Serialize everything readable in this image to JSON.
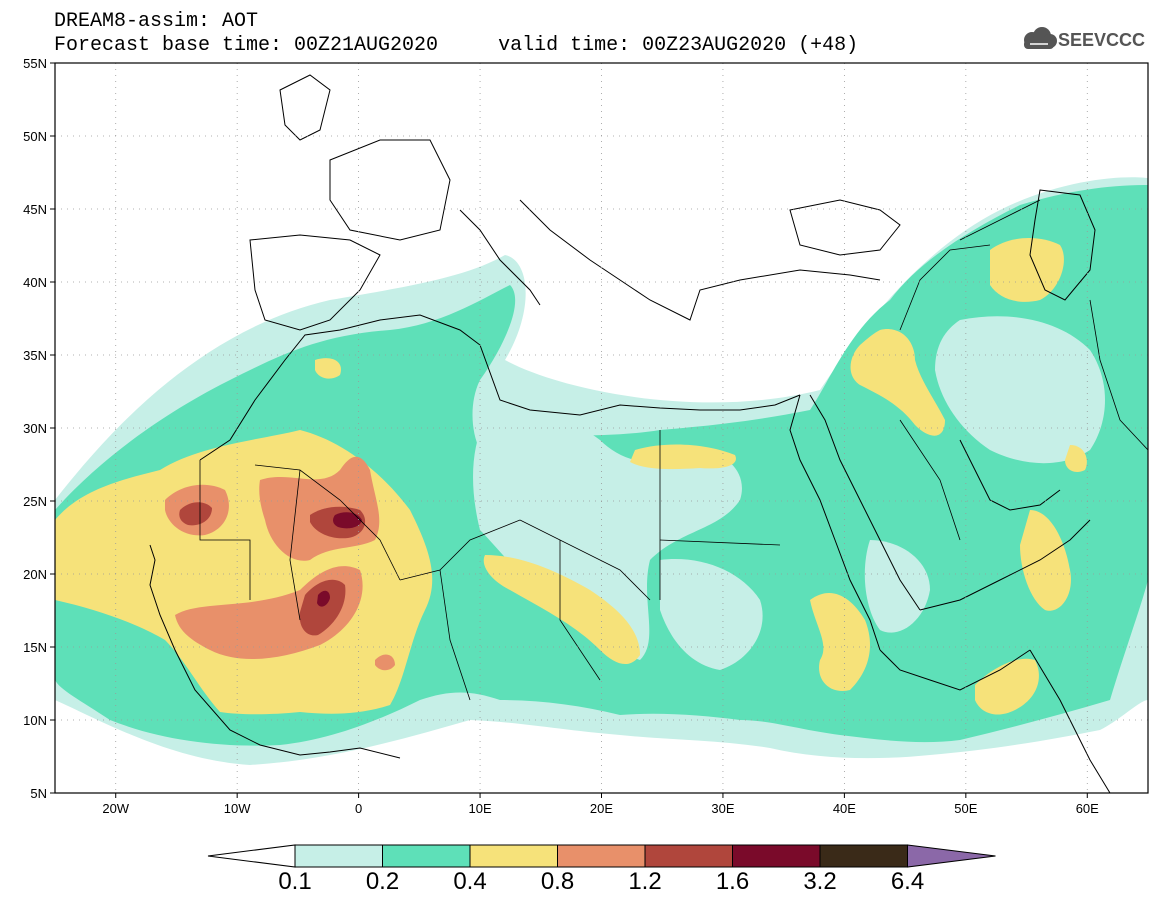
{
  "header": {
    "title_line1": "DREAM8-assim: AOT",
    "title_line2": "Forecast base time: 00Z21AUG2020     valid time: 00Z23AUG2020 (+48)",
    "logo_text": "SEEVCCC"
  },
  "map": {
    "lon_range": [
      -25,
      65
    ],
    "lat_range": [
      5,
      55
    ],
    "lat_ticks": [
      {
        "value": 55,
        "label": "55N"
      },
      {
        "value": 50,
        "label": "50N"
      },
      {
        "value": 45,
        "label": "45N"
      },
      {
        "value": 40,
        "label": "40N"
      },
      {
        "value": 35,
        "label": "35N"
      },
      {
        "value": 30,
        "label": "30N"
      },
      {
        "value": 25,
        "label": "25N"
      },
      {
        "value": 20,
        "label": "20N"
      },
      {
        "value": 15,
        "label": "15N"
      },
      {
        "value": 10,
        "label": "10N"
      },
      {
        "value": 5,
        "label": "5N"
      }
    ],
    "lon_ticks": [
      {
        "value": -20,
        "label": "20W"
      },
      {
        "value": -10,
        "label": "10W"
      },
      {
        "value": 0,
        "label": "0"
      },
      {
        "value": 10,
        "label": "10E"
      },
      {
        "value": 20,
        "label": "20E"
      },
      {
        "value": 30,
        "label": "30E"
      },
      {
        "value": 40,
        "label": "40E"
      },
      {
        "value": 50,
        "label": "50E"
      },
      {
        "value": 60,
        "label": "60E"
      }
    ],
    "gridlines": "dotted"
  },
  "colorbar": {
    "labels": [
      "0.1",
      "0.2",
      "0.4",
      "0.8",
      "1.2",
      "1.6",
      "3.2",
      "6.4"
    ],
    "colors": [
      "#ffffff",
      "#c6efe7",
      "#5ee0b8",
      "#f6e27a",
      "#e8906a",
      "#b0463c",
      "#7a0a2a",
      "#3a2a18",
      "#8b68a8"
    ]
  },
  "levels": {
    "lvl1": "#c6efe7",
    "lvl2": "#5ee0b8",
    "lvl3": "#f6e27a",
    "lvl4": "#e8906a",
    "lvl5": "#b0463c",
    "lvl6": "#7a0a2a"
  }
}
